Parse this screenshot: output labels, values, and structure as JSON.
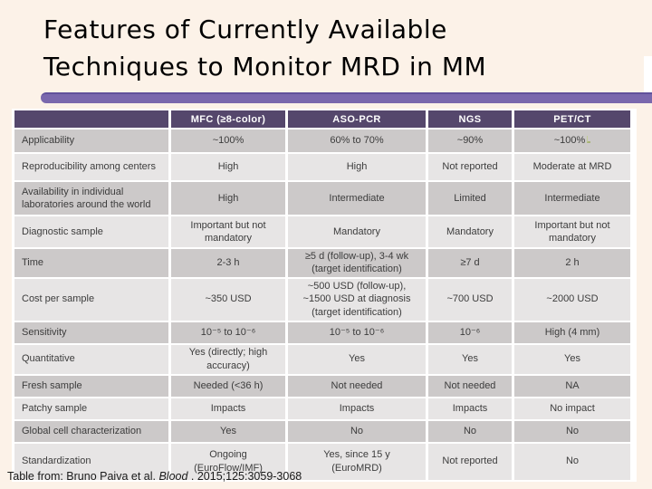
{
  "slide": {
    "title_line1": "Features of Currently Available",
    "title_line2": "Techniques to Monitor MRD in MM",
    "footer": {
      "prefix": "Table from: Bruno Paiva et al. ",
      "journal": "Blood",
      "suffix": " . 2015;125:3059-3068"
    }
  },
  "colors": {
    "background": "#FCF2E8",
    "accent_bar": "#7A68AD",
    "header_purple": "#55476C",
    "band_dark": "#CCC9C9",
    "band_light": "#E7E5E5",
    "stray_mark_green": "#A9B478"
  },
  "table": {
    "columns": [
      "",
      "MFC (≥8-color)",
      "ASO-PCR",
      "NGS",
      "PET/CT"
    ],
    "rows": [
      {
        "label": "Applicability",
        "cells": [
          "~100%",
          "60% to 70%",
          "~90%",
          "~100%"
        ]
      },
      {
        "label": "Reproducibility among centers",
        "cells": [
          "High",
          "High",
          "Not reported",
          "Moderate at MRD"
        ]
      },
      {
        "label": "Availability in individual laboratories around the world",
        "cells": [
          "High",
          "Intermediate",
          "Limited",
          "Intermediate"
        ]
      },
      {
        "label": "Diagnostic sample",
        "cells": [
          "Important but not\nmandatory",
          "Mandatory",
          "Mandatory",
          "Important but not\nmandatory"
        ]
      },
      {
        "label": "Time",
        "cells": [
          "2-3 h",
          "≥5 d (follow-up), 3-4 wk\n(target identification)",
          "≥7 d",
          "2 h"
        ]
      },
      {
        "label": "Cost per sample",
        "cells": [
          "~350 USD",
          "~500 USD (follow-up),\n~1500 USD at diagnosis\n(target identification)",
          "~700 USD",
          "~2000 USD"
        ]
      },
      {
        "label": "Sensitivity",
        "cells": [
          "10⁻⁵ to 10⁻⁶",
          "10⁻⁵ to 10⁻⁶",
          "10⁻⁶",
          "High (4 mm)"
        ]
      },
      {
        "label": "Quantitative",
        "cells": [
          "Yes (directly; high\naccuracy)",
          "Yes",
          "Yes",
          "Yes"
        ]
      },
      {
        "label": "Fresh sample",
        "cells": [
          "Needed (<36 h)",
          "Not needed",
          "Not needed",
          "NA"
        ]
      },
      {
        "label": "Patchy sample",
        "cells": [
          "Impacts",
          "Impacts",
          "Impacts",
          "No impact"
        ]
      },
      {
        "label": "Global cell characterization",
        "cells": [
          "Yes",
          "No",
          "No",
          "No"
        ]
      },
      {
        "label": "Standardization",
        "cells": [
          "Ongoing\n(EuroFlow/IMF)",
          "Yes, since 15 y\n(EuroMRD)",
          "Not reported",
          "No"
        ]
      }
    ]
  }
}
